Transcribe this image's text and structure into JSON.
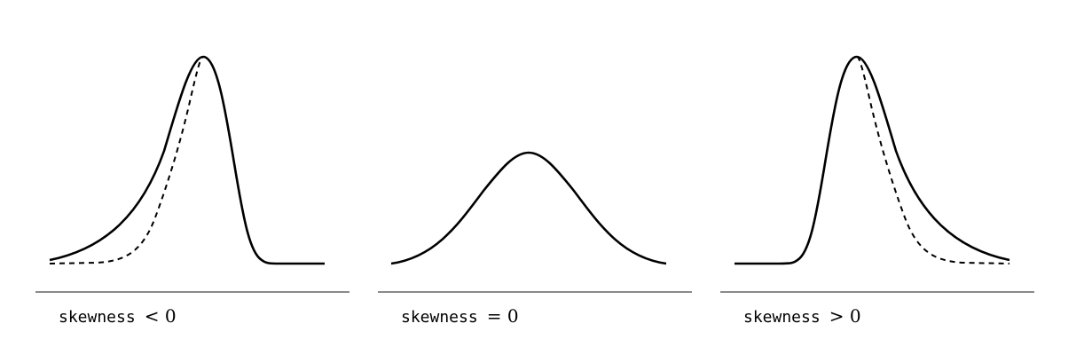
{
  "panels": [
    {
      "keyword": "skewness",
      "relation": "< 0",
      "shape": "negative-skew",
      "has_dashed_reference": true
    },
    {
      "keyword": "skewness",
      "relation": "= 0",
      "shape": "symmetric",
      "has_dashed_reference": false
    },
    {
      "keyword": "skewness",
      "relation": "> 0",
      "shape": "positive-skew",
      "has_dashed_reference": true
    }
  ],
  "colors": {
    "curve": "#000000",
    "baseline": "#444444",
    "background": "#ffffff"
  }
}
